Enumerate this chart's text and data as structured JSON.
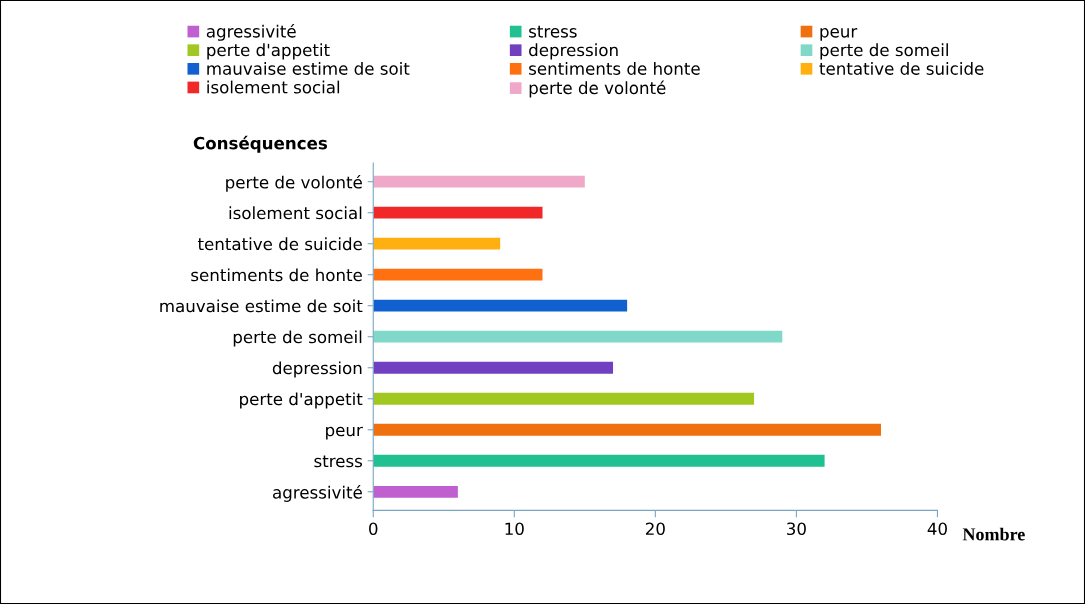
{
  "chart_data": {
    "type": "bar",
    "orientation": "horizontal",
    "ylabel": "Conséquences",
    "xlabel": "Nombre",
    "categories": [
      "perte de volonté",
      "isolement social",
      "tentative de suicide",
      "sentiments de honte",
      "mauvaise estime de soit",
      "perte de someil",
      "depression",
      "perte d'appetit",
      "peur",
      "stress",
      "agressivité"
    ],
    "series": [
      {
        "name": "agressivité",
        "color": "#c060d0",
        "values": [
          null,
          null,
          null,
          null,
          null,
          null,
          null,
          null,
          null,
          null,
          6
        ]
      },
      {
        "name": "stress",
        "color": "#20c090",
        "values": [
          null,
          null,
          null,
          null,
          null,
          null,
          null,
          null,
          null,
          32,
          null
        ]
      },
      {
        "name": "peur",
        "color": "#f07010",
        "values": [
          null,
          null,
          null,
          null,
          null,
          null,
          null,
          null,
          36,
          null,
          null
        ]
      },
      {
        "name": "perte d'appetit",
        "color": "#a0c820",
        "values": [
          null,
          null,
          null,
          null,
          null,
          null,
          null,
          27,
          null,
          null,
          null
        ]
      },
      {
        "name": "depression",
        "color": "#7040c0",
        "values": [
          null,
          null,
          null,
          null,
          null,
          null,
          17,
          null,
          null,
          null,
          null
        ]
      },
      {
        "name": "perte de someil",
        "color": "#80d8c8",
        "values": [
          null,
          null,
          null,
          null,
          null,
          29,
          null,
          null,
          null,
          null,
          null
        ]
      },
      {
        "name": "mauvaise estime de soit",
        "color": "#1060d0",
        "values": [
          null,
          null,
          null,
          null,
          18,
          null,
          null,
          null,
          null,
          null,
          null
        ]
      },
      {
        "name": "sentiments de honte",
        "color": "#ff7010",
        "values": [
          null,
          null,
          null,
          12,
          null,
          null,
          null,
          null,
          null,
          null,
          null
        ]
      },
      {
        "name": "tentative de suicide",
        "color": "#ffb010",
        "values": [
          null,
          null,
          9,
          null,
          null,
          null,
          null,
          null,
          null,
          null,
          null
        ]
      },
      {
        "name": "isolement social",
        "color": "#f02828",
        "values": [
          null,
          12,
          null,
          null,
          null,
          null,
          null,
          null,
          null,
          null,
          null
        ]
      },
      {
        "name": "perte de volonté",
        "color": "#f0a8c8",
        "values": [
          15,
          null,
          null,
          null,
          null,
          null,
          null,
          null,
          null,
          null,
          null
        ]
      }
    ],
    "xlim": [
      0,
      40
    ],
    "xticks": [
      0,
      10,
      20,
      30,
      40
    ],
    "grid": false,
    "legend": "top"
  }
}
